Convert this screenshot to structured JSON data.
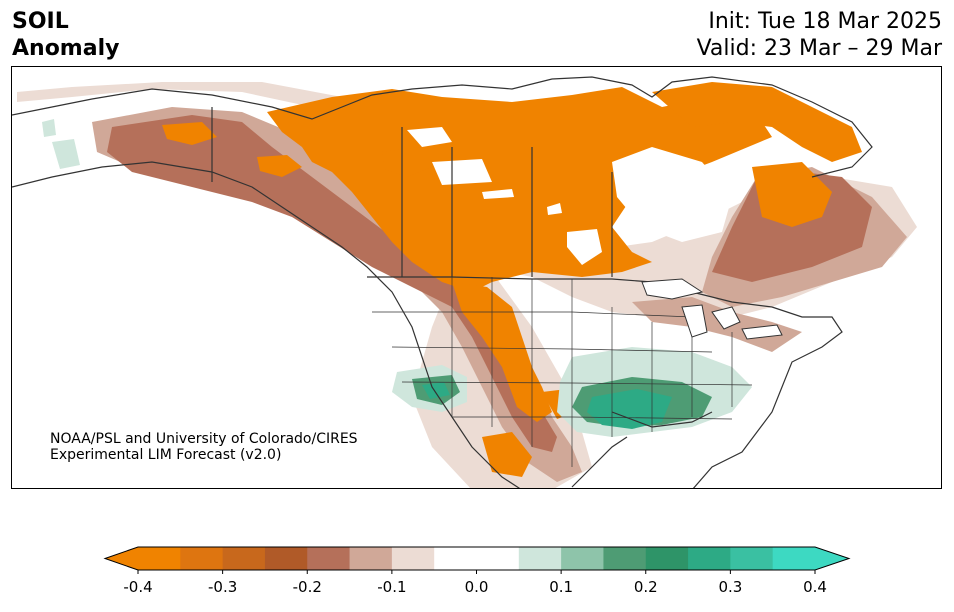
{
  "header": {
    "title_line1": "SOIL",
    "title_line2": "Anomaly",
    "init_text": "Init: Tue 18 Mar 2025",
    "valid_text": "Valid: 23 Mar – 29 Mar"
  },
  "credit": {
    "line1": "NOAA/PSL and University of Colorado/CIRES",
    "line2": "Experimental LIM Forecast (v2.0)"
  },
  "colorbar": {
    "colors": [
      "#f08300",
      "#de7510",
      "#c8681c",
      "#b05a28",
      "#b5705a",
      "#d0a898",
      "#ecdcd4",
      "#ffffff",
      "#ffffff",
      "#cfe6dc",
      "#8ec4aa",
      "#4e9c74",
      "#2e9468",
      "#2daa85",
      "#3ac0a2",
      "#3dd9c2"
    ],
    "under_color": "#f08300",
    "over_color": "#3dd9c2",
    "tick_labels": [
      "-0.4",
      "-0.3",
      "-0.2",
      "-0.1",
      "0.0",
      "0.1",
      "0.2",
      "0.3",
      "0.4"
    ]
  },
  "legend_colors": {
    "strong_dry": "#f08300",
    "dry": "#c8681c",
    "moderate_dry": "#b5705a",
    "weak_dry": "#ecdcd4",
    "weak_wet": "#cfe6dc",
    "wet": "#4e9c74",
    "strong_wet": "#2daa85",
    "boundary_line": "#333333"
  }
}
